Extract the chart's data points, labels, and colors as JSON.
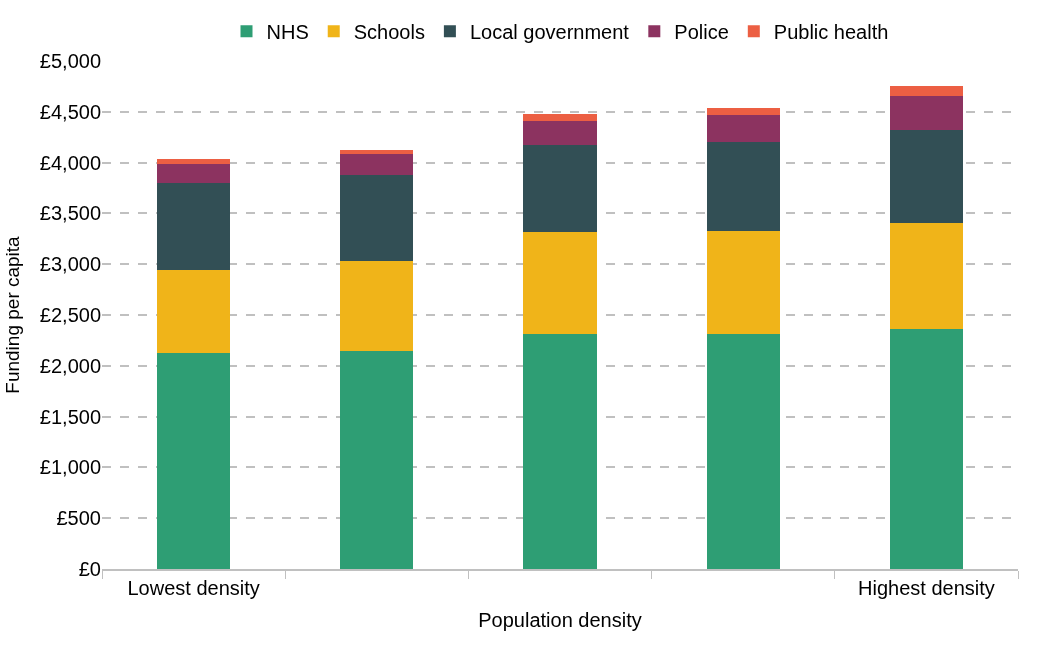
{
  "chart_data": {
    "type": "bar",
    "stacked": true,
    "xlabel": "Population density",
    "ylabel": "Funding per capita",
    "categories": [
      "Lowest density",
      null,
      null,
      null,
      "Highest density"
    ],
    "series": [
      {
        "name": "NHS",
        "color": "#2e9e74",
        "values": [
          2125,
          2145,
          2315,
          2315,
          2365
        ]
      },
      {
        "name": "Schools",
        "color": "#f0b419",
        "values": [
          815,
          890,
          1000,
          1015,
          1040
        ]
      },
      {
        "name": "Local government",
        "color": "#324f55",
        "values": [
          855,
          845,
          860,
          870,
          915
        ]
      },
      {
        "name": "Police",
        "color": "#8c3360",
        "values": [
          195,
          200,
          230,
          265,
          340
        ]
      },
      {
        "name": "Public health",
        "color": "#ec5f43",
        "values": [
          45,
          45,
          70,
          75,
          90
        ]
      }
    ],
    "ylim": [
      0,
      5000
    ],
    "yticks": [
      {
        "value": 0,
        "label": "£0"
      },
      {
        "value": 500,
        "label": "£500"
      },
      {
        "value": 1000,
        "label": "£1,000"
      },
      {
        "value": 1500,
        "label": "£1,500"
      },
      {
        "value": 2000,
        "label": "£2,000"
      },
      {
        "value": 2500,
        "label": "£2,500"
      },
      {
        "value": 3000,
        "label": "£3,000"
      },
      {
        "value": 3500,
        "label": "£3,500"
      },
      {
        "value": 4000,
        "label": "£4,000"
      },
      {
        "value": 4500,
        "label": "£4,500"
      },
      {
        "value": 5000,
        "label": "£5,000"
      }
    ],
    "grid": "y",
    "legend": "top"
  }
}
